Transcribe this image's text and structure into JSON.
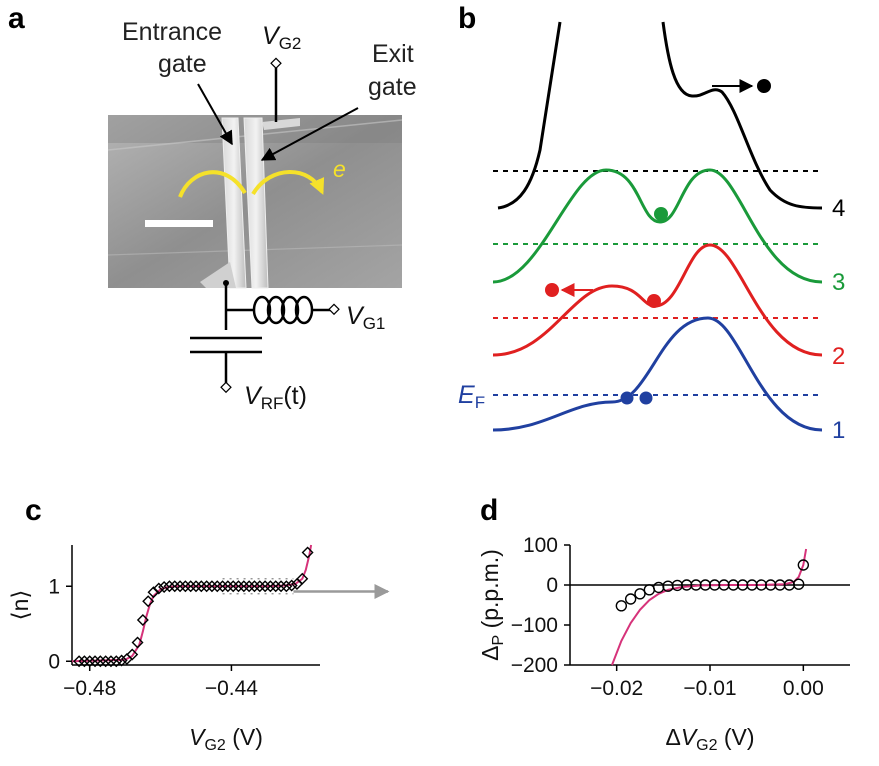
{
  "panels": {
    "a": {
      "label": "a",
      "entrance_gate": [
        "Entrance",
        "gate"
      ],
      "exit_gate": [
        "Exit",
        "gate"
      ],
      "vg2": {
        "main": "V",
        "sub": "G2"
      },
      "vg1": {
        "main": "V",
        "sub": "G1"
      },
      "vrf": {
        "main": "V",
        "sub": "RF",
        "arg": "(t)"
      },
      "electron": "e",
      "colors": {
        "arrow": "#f5e12a",
        "sem_bg": "#9a9a9a"
      }
    },
    "b": {
      "label": "b",
      "level_labels": [
        "4",
        "3",
        "2",
        "1"
      ],
      "ef": {
        "main": "E",
        "sub": "F"
      },
      "colors": [
        "#000000",
        "#1a9a3a",
        "#e02020",
        "#2040a0"
      ]
    },
    "c": {
      "label": "c"
    },
    "d": {
      "label": "d"
    }
  },
  "chart_data": [
    {
      "id": "c",
      "type": "scatter",
      "title": "",
      "xlabel": {
        "main": "V",
        "sub": "G2",
        "unit": "(V)"
      },
      "ylabel": "⟨n⟩",
      "xlim": [
        -0.485,
        -0.415
      ],
      "ylim": [
        -0.05,
        1.55
      ],
      "xticks": [
        -0.48,
        -0.44
      ],
      "xtick_labels": [
        "−0.48",
        "−0.44"
      ],
      "yticks": [
        0,
        1
      ],
      "ytick_labels": [
        "0",
        "1"
      ],
      "series": [
        {
          "name": "data",
          "marker": "diamond",
          "x": [
            -0.483,
            -0.4815,
            -0.48,
            -0.4785,
            -0.477,
            -0.4755,
            -0.474,
            -0.4725,
            -0.471,
            -0.4695,
            -0.468,
            -0.4665,
            -0.465,
            -0.4635,
            -0.462,
            -0.4605,
            -0.459,
            -0.4575,
            -0.456,
            -0.4545,
            -0.453,
            -0.4515,
            -0.45,
            -0.4485,
            -0.447,
            -0.4455,
            -0.444,
            -0.4425,
            -0.441,
            -0.4395,
            -0.438,
            -0.4365,
            -0.435,
            -0.4335,
            -0.432,
            -0.4305,
            -0.429,
            -0.4275,
            -0.426,
            -0.4245,
            -0.423,
            -0.4215,
            -0.42,
            -0.4185
          ],
          "y": [
            0.0,
            0.0,
            0.0,
            0.0,
            0.0,
            0.0,
            0.0,
            0.0,
            0.01,
            0.03,
            0.09,
            0.25,
            0.55,
            0.8,
            0.92,
            0.97,
            0.99,
            1.0,
            1.0,
            1.0,
            1.0,
            1.0,
            1.0,
            1.0,
            1.0,
            1.0,
            1.0,
            1.0,
            1.0,
            1.0,
            1.0,
            1.0,
            1.0,
            1.0,
            1.0,
            1.0,
            1.0,
            1.0,
            1.0,
            1.0,
            1.01,
            1.03,
            1.1,
            1.45
          ]
        },
        {
          "name": "fit",
          "color": "#d6337a",
          "x": [
            -0.485,
            -0.47,
            -0.468,
            -0.466,
            -0.465,
            -0.464,
            -0.463,
            -0.462,
            -0.46,
            -0.458,
            -0.455,
            -0.45,
            -0.44,
            -0.43,
            -0.425,
            -0.422,
            -0.42,
            -0.419,
            -0.418,
            -0.4175
          ],
          "y": [
            0.0,
            0.02,
            0.07,
            0.22,
            0.4,
            0.6,
            0.76,
            0.87,
            0.96,
            0.99,
            1.0,
            1.0,
            1.0,
            1.0,
            1.01,
            1.03,
            1.1,
            1.22,
            1.42,
            1.58
          ]
        }
      ]
    },
    {
      "id": "d",
      "type": "scatter",
      "title": "",
      "xlabel": {
        "pre": "Δ",
        "main": "V",
        "sub": "G2",
        "unit": "(V)"
      },
      "ylabel": {
        "main": "Δ",
        "sub": "P",
        "unit": "(p.p.m.)"
      },
      "xlim": [
        -0.025,
        0.005
      ],
      "ylim": [
        -200,
        100
      ],
      "xticks": [
        -0.02,
        -0.01,
        0.0
      ],
      "xtick_labels": [
        "−0.02",
        "−0.01",
        "0.00"
      ],
      "yticks": [
        100,
        0,
        -100,
        -200
      ],
      "ytick_labels": [
        "100",
        "0",
        "−100",
        "−200"
      ],
      "series": [
        {
          "name": "data",
          "marker": "circle",
          "x": [
            -0.0195,
            -0.0185,
            -0.0175,
            -0.0165,
            -0.0155,
            -0.0145,
            -0.0135,
            -0.0125,
            -0.0115,
            -0.0105,
            -0.0095,
            -0.0085,
            -0.0075,
            -0.0065,
            -0.0055,
            -0.0045,
            -0.0035,
            -0.0025,
            -0.0015,
            -0.0005,
            0.0
          ],
          "y": [
            -52,
            -35,
            -22,
            -12,
            -6,
            -3,
            -1,
            0,
            0,
            0,
            0,
            0,
            0,
            0,
            0,
            0,
            0,
            0,
            0,
            2,
            50
          ]
        },
        {
          "name": "fit",
          "color": "#d6337a",
          "x": [
            -0.0205,
            -0.0195,
            -0.0185,
            -0.0175,
            -0.0165,
            -0.0155,
            -0.0145,
            -0.013,
            -0.011,
            -0.008,
            -0.005,
            -0.002,
            -0.001,
            -0.0005,
            0.0,
            0.0003
          ],
          "y": [
            -200,
            -140,
            -95,
            -62,
            -38,
            -22,
            -12,
            -5,
            -1,
            0,
            0,
            2,
            8,
            20,
            50,
            90
          ]
        }
      ]
    }
  ]
}
